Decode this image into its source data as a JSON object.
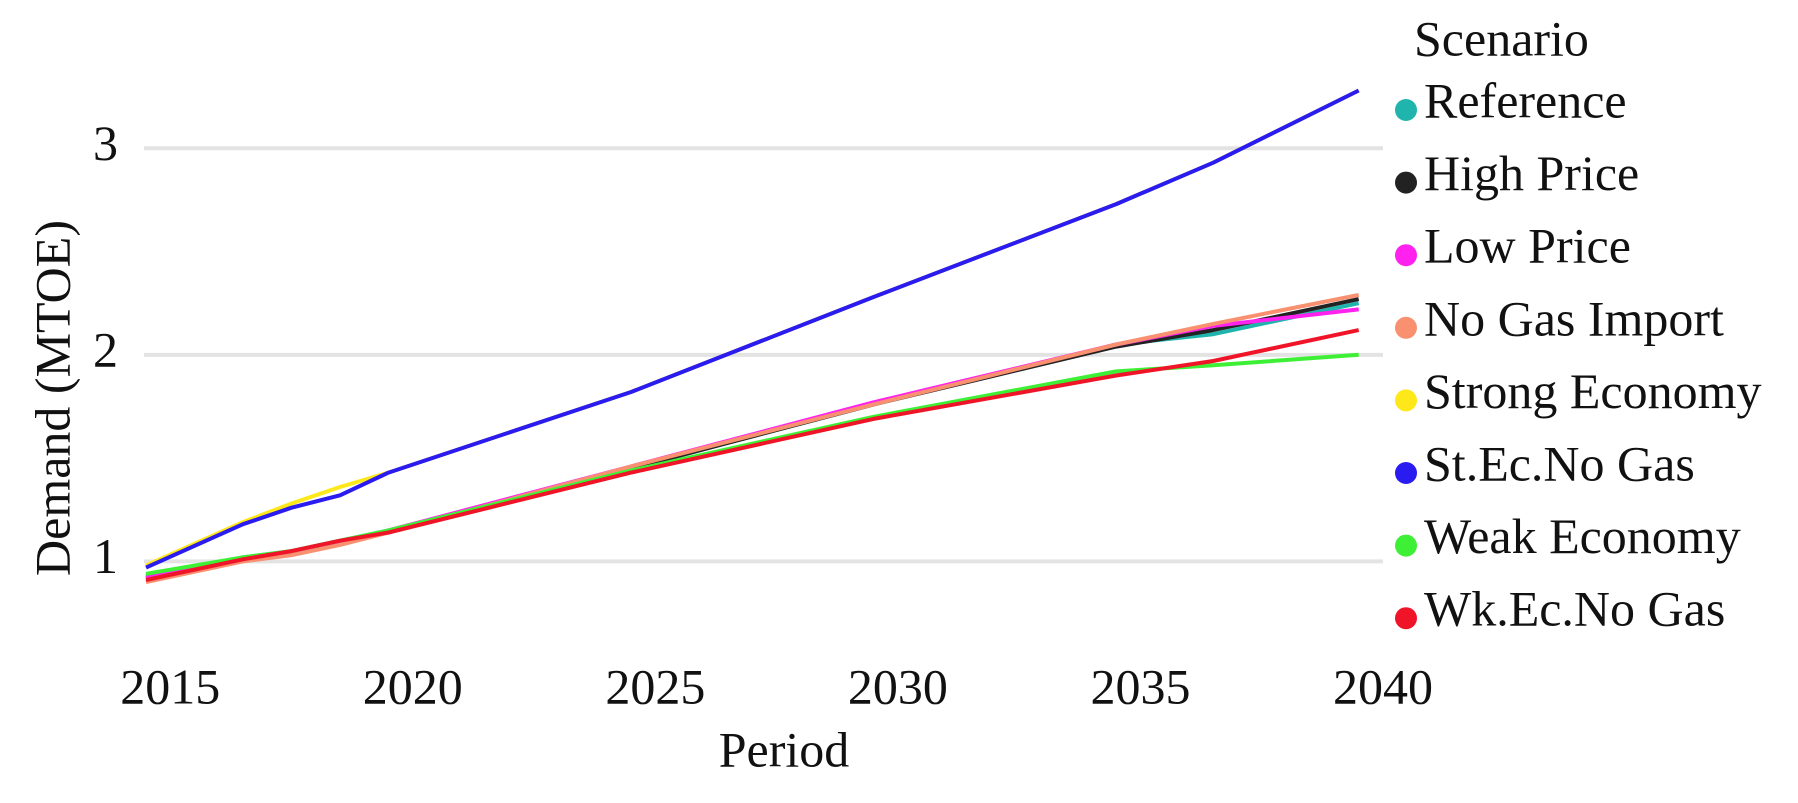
{
  "chart_data": {
    "type": "line",
    "x_label": "Period",
    "y_label": "Demand (MTOE)",
    "legend_title": "Scenario",
    "x": [
      2014.5,
      2016.5,
      2017.5,
      2018.5,
      2019.5,
      2024.5,
      2029.5,
      2034.5,
      2036.5,
      2039.5
    ],
    "series": [
      {
        "name": "Reference",
        "color": "#1fb5ad",
        "values": [
          0.93,
          1.02,
          1.05,
          1.1,
          1.15,
          1.45,
          1.76,
          2.05,
          2.1,
          2.25
        ]
      },
      {
        "name": "High Price",
        "color": "#222222",
        "values": [
          0.92,
          1.01,
          1.04,
          1.09,
          1.14,
          1.45,
          1.76,
          2.04,
          2.12,
          2.27
        ]
      },
      {
        "name": "Low Price",
        "color": "#ff22ee",
        "values": [
          0.92,
          1.01,
          1.04,
          1.09,
          1.15,
          1.46,
          1.77,
          2.05,
          2.14,
          2.22
        ]
      },
      {
        "name": "No Gas Import",
        "color": "#f99070",
        "values": [
          0.9,
          1.0,
          1.03,
          1.08,
          1.14,
          1.46,
          1.76,
          2.05,
          2.15,
          2.29
        ]
      },
      {
        "name": "Strong Economy",
        "color": "#ffe81a",
        "values": [
          0.98,
          1.19,
          1.28,
          1.36,
          1.43,
          1.82,
          2.28,
          2.73,
          2.93,
          3.28
        ]
      },
      {
        "name": "St.Ec.No Gas",
        "color": "#2a1bf0",
        "values": [
          0.97,
          1.18,
          1.26,
          1.32,
          1.43,
          1.82,
          2.28,
          2.73,
          2.93,
          3.28
        ]
      },
      {
        "name": "Weak Economy",
        "color": "#3ef035",
        "values": [
          0.94,
          1.02,
          1.05,
          1.1,
          1.15,
          1.44,
          1.7,
          1.92,
          1.95,
          2.0
        ]
      },
      {
        "name": "Wk.Ec.No Gas",
        "color": "#f01428",
        "values": [
          0.91,
          1.01,
          1.05,
          1.1,
          1.14,
          1.43,
          1.69,
          1.9,
          1.97,
          2.12
        ]
      }
    ],
    "xlim": [
      2014.5,
      2040
    ],
    "xticks": [
      2015,
      2020,
      2025,
      2030,
      2035,
      2040
    ],
    "ylim": [
      0.6,
      3.35
    ],
    "yticks": [
      1,
      2,
      3
    ],
    "grid": true
  }
}
